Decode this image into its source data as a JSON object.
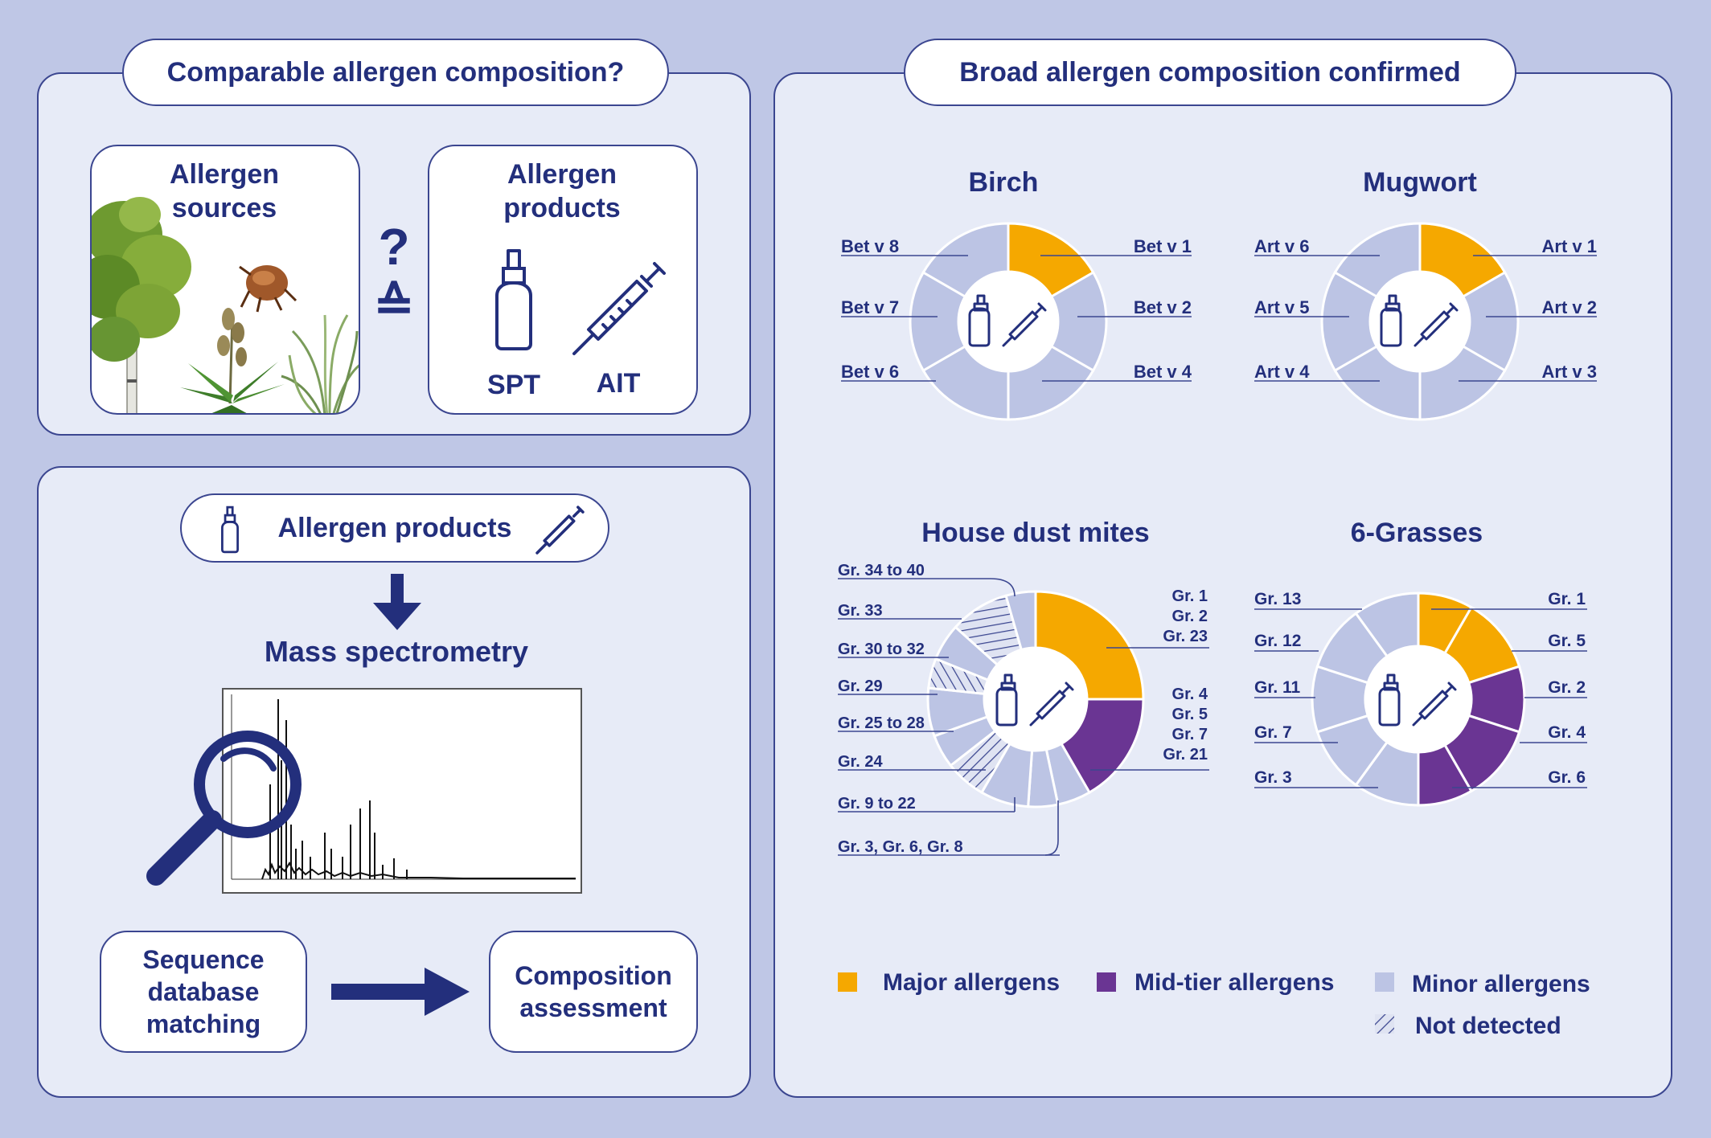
{
  "left_top": {
    "title": "Comparable allergen composition?",
    "sources_label": "Allergen sources",
    "products_label": "Allergen products",
    "question_mark": "?",
    "equiv_symbol": "≙",
    "spt_label": "SPT",
    "ait_label": "AIT"
  },
  "left_bottom": {
    "products_pill": "Allergen products",
    "mass_spec_title": "Mass spectrometry",
    "step1": "Sequence database matching",
    "step2": "Composition assessment"
  },
  "right": {
    "title": "Broad allergen composition confirmed",
    "birch": {
      "title": "Birch",
      "left_labels": [
        "Bet v 8",
        "Bet v 7",
        "Bet v 6"
      ],
      "right_labels": [
        "Bet v 1",
        "Bet v 2",
        "Bet v 4"
      ]
    },
    "mugwort": {
      "title": "Mugwort",
      "left_labels": [
        "Art v 6",
        "Art v 5",
        "Art v 4"
      ],
      "right_labels": [
        "Art v 1",
        "Art v 2",
        "Art v 3"
      ]
    },
    "mites": {
      "title": "House dust mites",
      "left_labels": [
        "Gr. 34 to 40",
        "Gr. 33",
        "Gr. 30 to 32",
        "Gr. 29",
        "Gr. 25 to 28",
        "Gr. 24",
        "Gr. 9 to 22",
        "Gr. 3, Gr. 6, Gr. 8"
      ],
      "right_top": [
        "Gr. 1",
        "Gr. 2",
        "Gr. 23"
      ],
      "right_bottom": [
        "Gr. 4",
        "Gr. 5",
        "Gr. 7",
        "Gr. 21"
      ]
    },
    "grasses": {
      "title": "6-Grasses",
      "left_labels": [
        "Gr. 13",
        "Gr. 12",
        "Gr. 11",
        "Gr. 7",
        "Gr. 3"
      ],
      "right_labels": [
        "Gr. 1",
        "Gr. 5",
        "Gr. 2",
        "Gr. 4",
        "Gr. 6"
      ]
    },
    "legend": {
      "major": "Major allergens",
      "mid": "Mid-tier allergens",
      "minor": "Minor allergens",
      "not_detected": "Not detected"
    }
  },
  "colors": {
    "major": "#f5a800",
    "mid": "#6a3593",
    "minor": "#bcc4e4",
    "navy": "#232f7c",
    "panel": "#e7ebf7",
    "background": "#bfc7e6"
  }
}
